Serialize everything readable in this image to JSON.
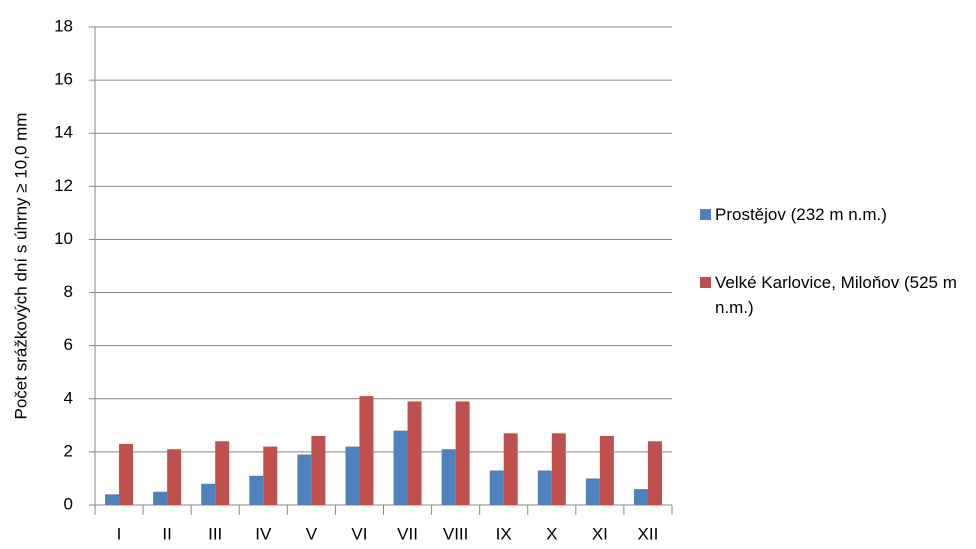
{
  "chart_data": {
    "type": "bar",
    "y_label": "Počet srážkových dní s úhrny ≥ 10,0 mm",
    "categories": [
      "I",
      "II",
      "III",
      "IV",
      "V",
      "VI",
      "VII",
      "VIII",
      "IX",
      "X",
      "XI",
      "XII"
    ],
    "series": [
      {
        "name": "Prostějov (232 m n.m.)",
        "color": "#4f81bd",
        "values": [
          0.4,
          0.5,
          0.8,
          1.1,
          1.9,
          2.2,
          2.8,
          2.1,
          1.3,
          1.3,
          1.0,
          0.6
        ]
      },
      {
        "name": "Velké Karlovice, Miloňov (525 m n.m.)",
        "color": "#c0504d",
        "values": [
          2.3,
          2.1,
          2.4,
          2.2,
          2.6,
          4.1,
          3.9,
          3.9,
          2.7,
          2.7,
          2.6,
          2.4
        ]
      }
    ],
    "ylim": [
      0,
      18
    ],
    "yticks": [
      0,
      2,
      4,
      6,
      8,
      10,
      12,
      14,
      16,
      18
    ],
    "grid": true,
    "legend": "right"
  }
}
